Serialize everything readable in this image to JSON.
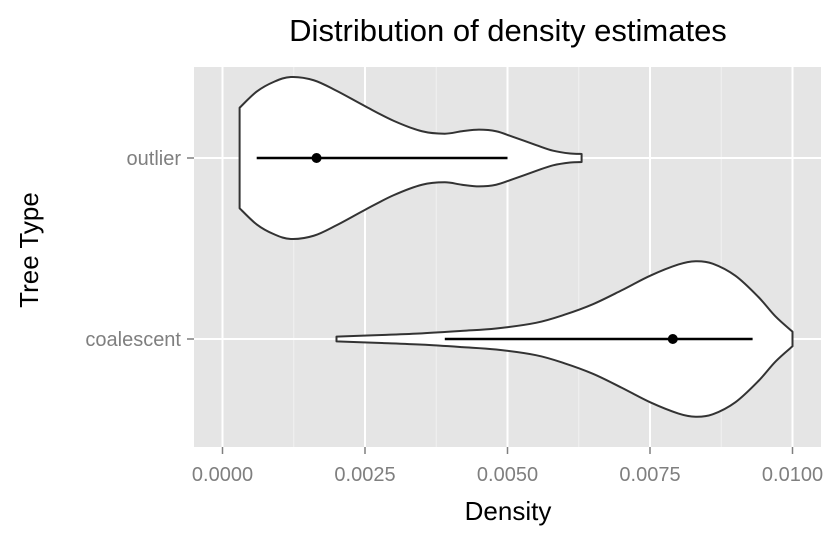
{
  "chart_data": {
    "type": "violin",
    "title": "Distribution of density estimates",
    "xlabel": "Density",
    "ylabel": "Tree Type",
    "xlim": [
      -0.0005,
      0.0105
    ],
    "xticks": [
      "0.0000",
      "0.0025",
      "0.0050",
      "0.0075",
      "0.0100"
    ],
    "xtick_values": [
      0,
      0.0025,
      0.005,
      0.0075,
      0.01
    ],
    "categories": [
      "outlier",
      "coalescent"
    ],
    "grid": true,
    "colors": {
      "panel": "#e5e5e5",
      "grid_major": "#ffffff",
      "grid_minor": "#f2f2f2",
      "violin_fill": "#ffffff",
      "violin_stroke": "#333333",
      "summary": "#000000"
    },
    "series": [
      {
        "category": "outlier",
        "min": 0.0003,
        "max": 0.0063,
        "point": 0.00165,
        "interval": [
          0.0006,
          0.005
        ],
        "density_profile": [
          [
            0.0003,
            0.62
          ],
          [
            0.0006,
            0.82
          ],
          [
            0.0009,
            0.94
          ],
          [
            0.0012,
            1.0
          ],
          [
            0.0016,
            0.96
          ],
          [
            0.002,
            0.83
          ],
          [
            0.0025,
            0.64
          ],
          [
            0.003,
            0.46
          ],
          [
            0.0035,
            0.33
          ],
          [
            0.0039,
            0.3
          ],
          [
            0.0042,
            0.33
          ],
          [
            0.0045,
            0.35
          ],
          [
            0.0048,
            0.33
          ],
          [
            0.0051,
            0.26
          ],
          [
            0.0055,
            0.16
          ],
          [
            0.0058,
            0.09
          ],
          [
            0.0061,
            0.055
          ],
          [
            0.0063,
            0.05
          ]
        ]
      },
      {
        "category": "coalescent",
        "min": 0.002,
        "max": 0.01,
        "point": 0.0079,
        "interval": [
          0.0039,
          0.0093
        ],
        "density_profile": [
          [
            0.002,
            0.03
          ],
          [
            0.0028,
            0.05
          ],
          [
            0.0035,
            0.07
          ],
          [
            0.0042,
            0.1
          ],
          [
            0.0048,
            0.13
          ],
          [
            0.0055,
            0.2
          ],
          [
            0.006,
            0.3
          ],
          [
            0.0065,
            0.43
          ],
          [
            0.007,
            0.6
          ],
          [
            0.0075,
            0.78
          ],
          [
            0.008,
            0.92
          ],
          [
            0.0083,
            0.96
          ],
          [
            0.0086,
            0.93
          ],
          [
            0.009,
            0.78
          ],
          [
            0.0094,
            0.52
          ],
          [
            0.0097,
            0.28
          ],
          [
            0.01,
            0.09
          ]
        ]
      }
    ]
  }
}
